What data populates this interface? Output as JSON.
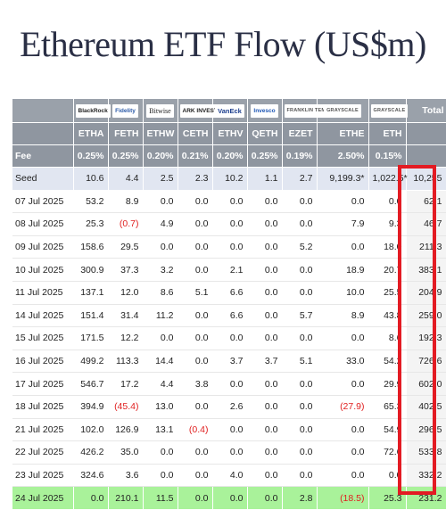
{
  "title": "Ethereum ETF Flow (US$m)",
  "header": {
    "logos": [
      "BlackRock",
      "Fidelity",
      "Bitwise",
      "ARK INVEST",
      "VanEck",
      "Invesco",
      "FRANKLIN TEMPLETON",
      "GRAYSCALE",
      "GRAYSCALE"
    ],
    "total_label": "Total",
    "tickers": [
      "ETHA",
      "FETH",
      "ETHW",
      "CETH",
      "ETHV",
      "QETH",
      "EZET",
      "ETHE",
      "ETH"
    ],
    "fee_label": "Fee",
    "fees": [
      "0.25%",
      "0.25%",
      "0.20%",
      "0.21%",
      "0.20%",
      "0.25%",
      "0.19%",
      "2.50%",
      "0.15%"
    ]
  },
  "rows": [
    {
      "date": "Seed",
      "values": [
        "10.6",
        "4.4",
        "2.5",
        "2.3",
        "10.2",
        "1.1",
        "2.7",
        "9,199.3*",
        "1,022.5*"
      ],
      "total": "10,255"
    },
    {
      "date": "07 Jul 2025",
      "values": [
        "53.2",
        "8.9",
        "0.0",
        "0.0",
        "0.0",
        "0.0",
        "0.0",
        "0.0",
        "0.0"
      ],
      "total": "62.1"
    },
    {
      "date": "08 Jul 2025",
      "values": [
        "25.3",
        "(0.7)",
        "4.9",
        "0.0",
        "0.0",
        "0.0",
        "0.0",
        "7.9",
        "9.3"
      ],
      "total": "46.7"
    },
    {
      "date": "09 Jul 2025",
      "values": [
        "158.6",
        "29.5",
        "0.0",
        "0.0",
        "0.0",
        "0.0",
        "5.2",
        "0.0",
        "18.0"
      ],
      "total": "211.3"
    },
    {
      "date": "10 Jul 2025",
      "values": [
        "300.9",
        "37.3",
        "3.2",
        "0.0",
        "2.1",
        "0.0",
        "0.0",
        "18.9",
        "20.7"
      ],
      "total": "383.1"
    },
    {
      "date": "11 Jul 2025",
      "values": [
        "137.1",
        "12.0",
        "8.6",
        "5.1",
        "6.6",
        "0.0",
        "0.0",
        "10.0",
        "25.5"
      ],
      "total": "204.9"
    },
    {
      "date": "14 Jul 2025",
      "values": [
        "151.4",
        "31.4",
        "11.2",
        "0.0",
        "6.6",
        "0.0",
        "5.7",
        "8.9",
        "43.8"
      ],
      "total": "259.0"
    },
    {
      "date": "15 Jul 2025",
      "values": [
        "171.5",
        "12.2",
        "0.0",
        "0.0",
        "0.0",
        "0.0",
        "0.0",
        "0.0",
        "8.6"
      ],
      "total": "192.3"
    },
    {
      "date": "16 Jul 2025",
      "values": [
        "499.2",
        "113.3",
        "14.4",
        "0.0",
        "3.7",
        "3.7",
        "5.1",
        "33.0",
        "54.2"
      ],
      "total": "726.6"
    },
    {
      "date": "17 Jul 2025",
      "values": [
        "546.7",
        "17.2",
        "4.4",
        "3.8",
        "0.0",
        "0.0",
        "0.0",
        "0.0",
        "29.9"
      ],
      "total": "602.0"
    },
    {
      "date": "18 Jul 2025",
      "values": [
        "394.9",
        "(45.4)",
        "13.0",
        "0.0",
        "2.6",
        "0.0",
        "0.0",
        "(27.9)",
        "65.3"
      ],
      "total": "402.5"
    },
    {
      "date": "21 Jul 2025",
      "values": [
        "102.0",
        "126.9",
        "13.1",
        "(0.4)",
        "0.0",
        "0.0",
        "0.0",
        "0.0",
        "54.9"
      ],
      "total": "296.5"
    },
    {
      "date": "22 Jul 2025",
      "values": [
        "426.2",
        "35.0",
        "0.0",
        "0.0",
        "0.0",
        "0.0",
        "0.0",
        "0.0",
        "72.6"
      ],
      "total": "533.8"
    },
    {
      "date": "23 Jul 2025",
      "values": [
        "324.6",
        "3.6",
        "0.0",
        "0.0",
        "4.0",
        "0.0",
        "0.0",
        "0.0",
        "0.0"
      ],
      "total": "332.2"
    },
    {
      "date": "24 Jul 2025",
      "values": [
        "0.0",
        "210.1",
        "11.5",
        "0.0",
        "0.0",
        "0.0",
        "2.8",
        "(18.5)",
        "25.3"
      ],
      "total": "231.2"
    }
  ],
  "colors": {
    "negative": "#e02020",
    "highlight_border": "#e31b23",
    "latest_row": "#a9f29a",
    "header": "#8f96a0"
  }
}
